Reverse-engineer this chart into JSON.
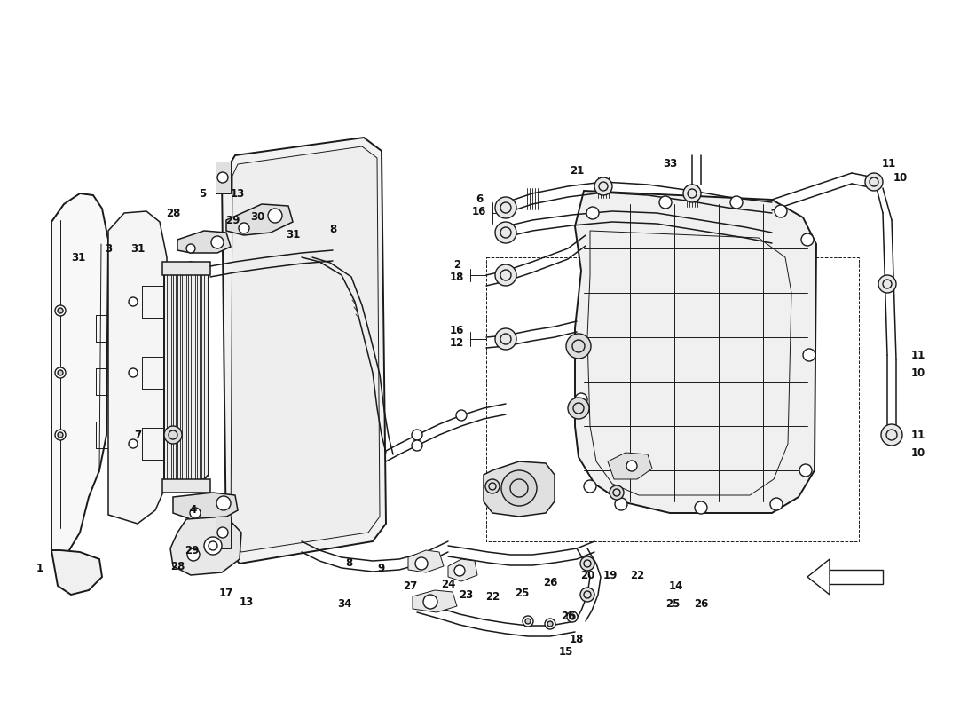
{
  "bg_color": "#ffffff",
  "line_color": "#1a1a1a",
  "fig_width": 11.0,
  "fig_height": 8.0,
  "dpi": 100
}
